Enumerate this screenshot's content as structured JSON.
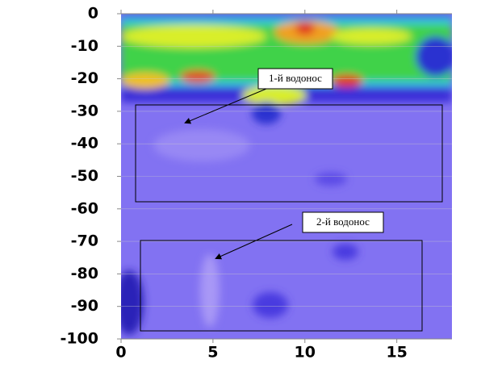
{
  "chart_data": {
    "type": "contour",
    "xlim": [
      0,
      18
    ],
    "xticks": [
      0,
      5,
      10,
      15
    ],
    "ylim": [
      -100,
      0
    ],
    "yticks": [
      0,
      -10,
      -20,
      -30,
      -40,
      -50,
      -60,
      -70,
      -80,
      -90,
      -100
    ],
    "annotations": [
      "1-й водонос",
      "2-й водонос"
    ]
  }
}
